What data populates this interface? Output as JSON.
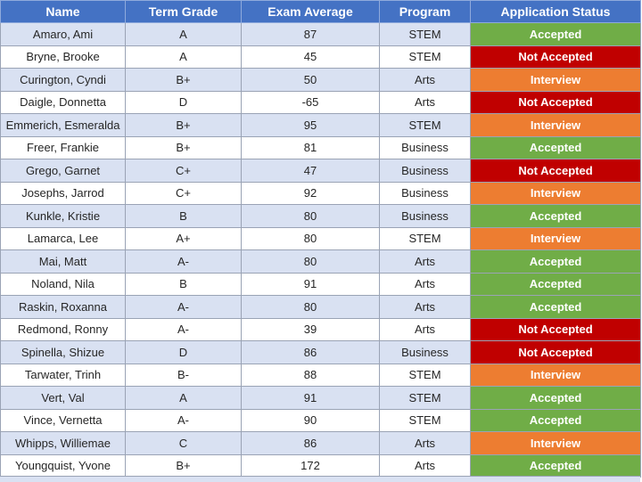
{
  "table": {
    "headers": [
      "Name",
      "Term Grade",
      "Exam Average",
      "Program",
      "Application Status"
    ],
    "rows": [
      {
        "name": "Amaro, Ami",
        "grade": "A",
        "exam": "87",
        "program": "STEM",
        "status": "Accepted"
      },
      {
        "name": "Bryne, Brooke",
        "grade": "A",
        "exam": "45",
        "program": "STEM",
        "status": "Not Accepted"
      },
      {
        "name": "Curington, Cyndi",
        "grade": "B+",
        "exam": "50",
        "program": "Arts",
        "status": "Interview"
      },
      {
        "name": "Daigle, Donnetta",
        "grade": "D",
        "exam": "-65",
        "program": "Arts",
        "status": "Not Accepted"
      },
      {
        "name": "Emmerich, Esmeralda",
        "grade": "B+",
        "exam": "95",
        "program": "STEM",
        "status": "Interview"
      },
      {
        "name": "Freer, Frankie",
        "grade": "B+",
        "exam": "81",
        "program": "Business",
        "status": "Accepted"
      },
      {
        "name": "Grego, Garnet",
        "grade": "C+",
        "exam": "47",
        "program": "Business",
        "status": "Not Accepted"
      },
      {
        "name": "Josephs, Jarrod",
        "grade": "C+",
        "exam": "92",
        "program": "Business",
        "status": "Interview"
      },
      {
        "name": "Kunkle, Kristie",
        "grade": "B",
        "exam": "80",
        "program": "Business",
        "status": "Accepted"
      },
      {
        "name": "Lamarca, Lee",
        "grade": "A+",
        "exam": "80",
        "program": "STEM",
        "status": "Interview"
      },
      {
        "name": "Mai, Matt",
        "grade": "A-",
        "exam": "80",
        "program": "Arts",
        "status": "Accepted"
      },
      {
        "name": "Noland, Nila",
        "grade": "B",
        "exam": "91",
        "program": "Arts",
        "status": "Accepted"
      },
      {
        "name": "Raskin, Roxanna",
        "grade": "A-",
        "exam": "80",
        "program": "Arts",
        "status": "Accepted"
      },
      {
        "name": "Redmond, Ronny",
        "grade": "A-",
        "exam": "39",
        "program": "Arts",
        "status": "Not Accepted"
      },
      {
        "name": "Spinella, Shizue",
        "grade": "D",
        "exam": "86",
        "program": "Business",
        "status": "Not Accepted"
      },
      {
        "name": "Tarwater, Trinh",
        "grade": "B-",
        "exam": "88",
        "program": "STEM",
        "status": "Interview"
      },
      {
        "name": "Vert, Val",
        "grade": "A",
        "exam": "91",
        "program": "STEM",
        "status": "Accepted"
      },
      {
        "name": "Vince, Vernetta",
        "grade": "A-",
        "exam": "90",
        "program": "STEM",
        "status": "Accepted"
      },
      {
        "name": "Whipps, Williemae",
        "grade": "C",
        "exam": "86",
        "program": "Arts",
        "status": "Interview"
      },
      {
        "name": "Youngquist, Yvone",
        "grade": "B+",
        "exam": "172",
        "program": "Arts",
        "status": "Accepted"
      }
    ]
  },
  "colors": {
    "header_fill": "#4472c4",
    "band_fill": "#d9e1f2",
    "accepted": "#70ad47",
    "not_accepted": "#c00000",
    "interview": "#ed7d31"
  }
}
